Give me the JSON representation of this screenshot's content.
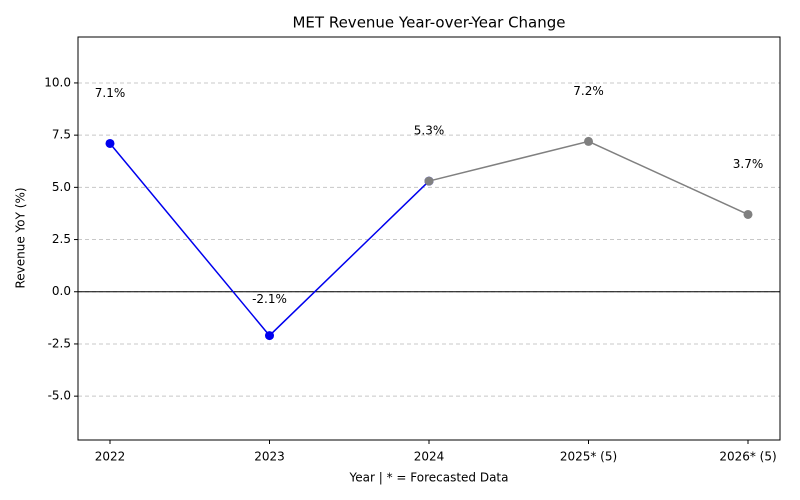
{
  "chart_data": {
    "type": "line",
    "title": "MET Revenue Year-over-Year Change",
    "xlabel": "Year | * = Forecasted Data",
    "ylabel": "Revenue YoY (%)",
    "categories": [
      "2022",
      "2023",
      "2024",
      "2025* (5)",
      "2026* (5)"
    ],
    "series": [
      {
        "color": "#0000ee",
        "values": [
          7.1,
          -2.1,
          5.3,
          null,
          null
        ],
        "value_labels": [
          "7.1%",
          "-2.1%",
          "5.3%",
          null,
          null
        ]
      },
      {
        "color": "#808080",
        "values": [
          null,
          null,
          5.3,
          7.2,
          3.7
        ],
        "value_labels": [
          null,
          null,
          null,
          "7.2%",
          "3.7%"
        ]
      }
    ],
    "ylim": [
      -7.1,
      12.2
    ],
    "yticks": [
      {
        "value": -5,
        "label": "-5.0"
      },
      {
        "value": -2.5,
        "label": "-2.5"
      },
      {
        "value": 0,
        "label": "0.0"
      },
      {
        "value": 2.5,
        "label": "2.5"
      },
      {
        "value": 5,
        "label": "5.0"
      },
      {
        "value": 7.5,
        "label": "7.5"
      },
      {
        "value": 10,
        "label": "10.0"
      }
    ],
    "grid": true
  }
}
